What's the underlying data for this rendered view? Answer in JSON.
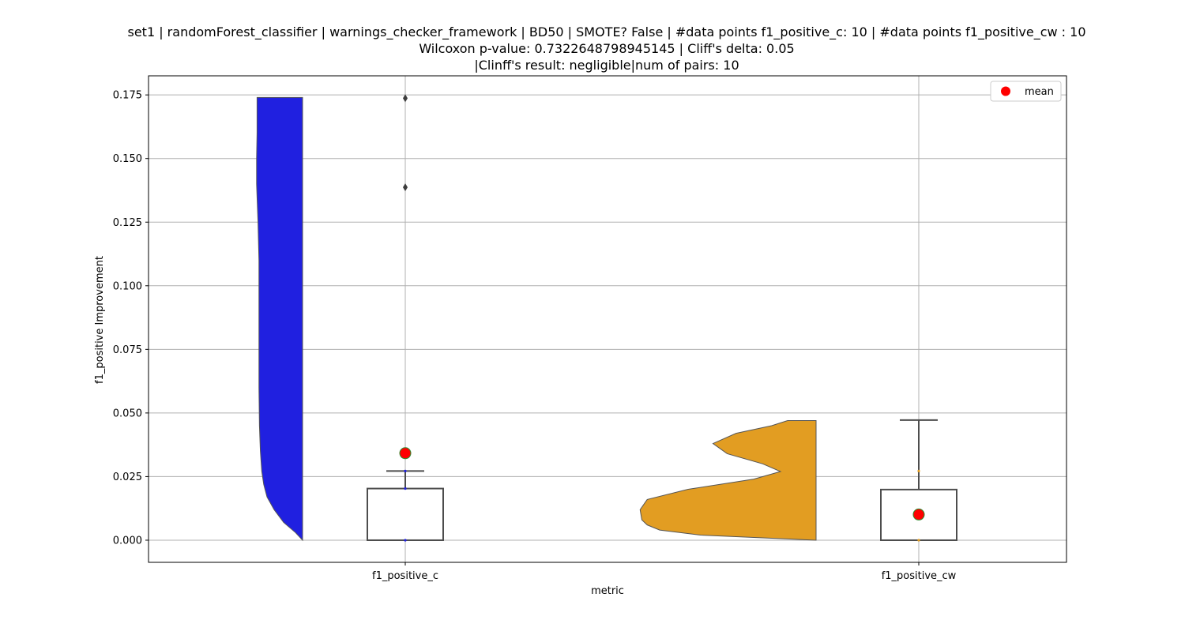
{
  "chart_data": {
    "type": "violin+box",
    "title_lines": [
      "set1 | randomForest_classifier | warnings_checker_framework | BD50 | SMOTE? False | #data points f1_positive_c: 10 | #data points f1_positive_cw : 10",
      "Wilcoxon p-value: 0.7322648798945145 | Cliff's delta: 0.05",
      "|Clinff's result: negligible|num of pairs: 10"
    ],
    "xlabel": "metric",
    "ylabel": "f1_positive Improvement",
    "categories": [
      "f1_positive_c",
      "f1_positive_cw"
    ],
    "ylim": [
      -0.0087,
      0.1825
    ],
    "yticks": [
      0.0,
      0.025,
      0.05,
      0.075,
      0.1,
      0.125,
      0.15,
      0.175
    ],
    "ytick_labels": [
      "0.000",
      "0.025",
      "0.050",
      "0.075",
      "0.100",
      "0.125",
      "0.150",
      "0.175"
    ],
    "grid": true,
    "legend": {
      "position": "top-right",
      "label": "mean",
      "marker_color": "#ff0000"
    },
    "colors": {
      "f1_positive_c": "#2020e0",
      "f1_positive_cw": "#e29d22",
      "mean": "#ff0000",
      "box_edge": "#4d4d4d",
      "grid": "#b0b0b0"
    },
    "series": [
      {
        "name": "f1_positive_c",
        "violin": {
          "side": "left",
          "y": [
            0.0,
            0.003,
            0.007,
            0.012,
            0.017,
            0.022,
            0.027,
            0.035,
            0.045,
            0.06,
            0.08,
            0.1,
            0.11,
            0.125,
            0.14,
            0.15,
            0.16,
            0.174
          ],
          "density": [
            0.0,
            0.15,
            0.4,
            0.6,
            0.75,
            0.82,
            0.86,
            0.89,
            0.91,
            0.92,
            0.92,
            0.92,
            0.92,
            0.94,
            0.97,
            0.97,
            0.96,
            0.96
          ]
        },
        "box": {
          "q1": 0.0,
          "median": 0.0,
          "q3": 0.0203,
          "whisker_low": 0.0,
          "whisker_high": 0.0272
        },
        "outliers": [
          0.1387,
          0.1737
        ],
        "points": [
          0.0,
          0.0203,
          0.0272
        ],
        "mean": 0.0342
      },
      {
        "name": "f1_positive_cw",
        "violin": {
          "side": "left",
          "y": [
            0.0,
            0.002,
            0.004,
            0.006,
            0.008,
            0.012,
            0.016,
            0.02,
            0.024,
            0.027,
            0.03,
            0.034,
            0.038,
            0.042,
            0.045,
            0.047
          ],
          "density": [
            0.0,
            0.65,
            0.88,
            0.95,
            0.98,
            0.99,
            0.95,
            0.72,
            0.35,
            0.2,
            0.3,
            0.5,
            0.58,
            0.45,
            0.25,
            0.16
          ]
        },
        "box": {
          "q1": 0.0,
          "median": 0.0,
          "q3": 0.0199,
          "whisker_low": 0.0,
          "whisker_high": 0.0472
        },
        "outliers": [],
        "points": [
          0.0,
          0.0272
        ],
        "mean": 0.0101
      }
    ]
  }
}
